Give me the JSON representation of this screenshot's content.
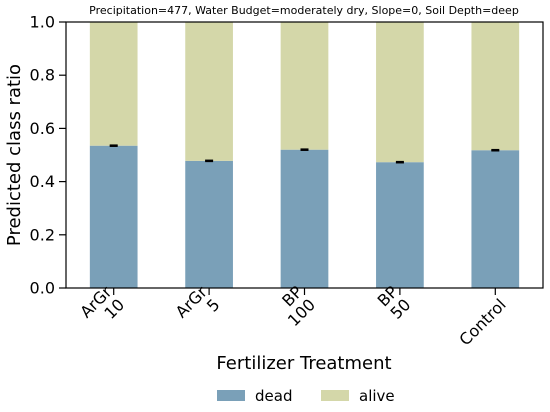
{
  "chart_data": {
    "type": "bar",
    "stacked": true,
    "title": "Precipitation=477, Water Budget=moderately dry, Slope=0, Soil Depth=deep",
    "xlabel": "Fertilizer Treatment",
    "ylabel": "Predicted class ratio",
    "ylim": [
      0,
      1
    ],
    "yticks": [
      "0.0",
      "0.2",
      "0.4",
      "0.6",
      "0.8",
      "1.0"
    ],
    "categories": [
      [
        "ArGr",
        "10"
      ],
      [
        "ArGr",
        "5"
      ],
      [
        "BP",
        "100"
      ],
      [
        "BP",
        "50"
      ],
      [
        "Control"
      ]
    ],
    "series": [
      {
        "name": "dead",
        "color": "#7aa0b8",
        "values": [
          0.535,
          0.478,
          0.52,
          0.473,
          0.518
        ]
      },
      {
        "name": "alive",
        "color": "#d4d7a9",
        "values": [
          0.465,
          0.522,
          0.48,
          0.527,
          0.482
        ]
      }
    ],
    "error_bar_series": "dead",
    "error_bars": [
      0.002,
      0.002,
      0.002,
      0.002,
      0.002
    ],
    "legend_position": "bottom",
    "grid": false
  }
}
